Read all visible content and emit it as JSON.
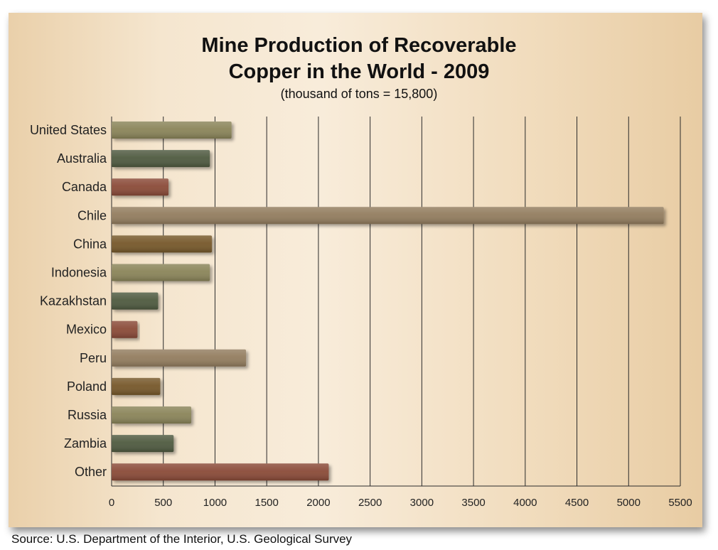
{
  "chart_data": {
    "type": "bar",
    "orientation": "horizontal",
    "title_line1": "Mine Production of Recoverable",
    "title_line2": "Copper in the World - 2009",
    "subtitle": "(thousand of tons = 15,800)",
    "xlabel": "",
    "ylabel": "",
    "xlim": [
      0,
      5500
    ],
    "xticks": [
      0,
      500,
      1000,
      1500,
      2000,
      2500,
      3000,
      3500,
      4000,
      4500,
      5000,
      5500
    ],
    "grid": "vertical",
    "categories": [
      "United States",
      "Australia",
      "Canada",
      "Chile",
      "China",
      "Indonesia",
      "Kazakhstan",
      "Mexico",
      "Peru",
      "Poland",
      "Russia",
      "Zambia",
      "Other"
    ],
    "values": [
      1160,
      950,
      550,
      5340,
      970,
      950,
      450,
      250,
      1300,
      470,
      770,
      600,
      2100
    ],
    "bar_colors": [
      "#8a8459",
      "#4f5a40",
      "#8a4a38",
      "#927c5e",
      "#76582a",
      "#8a8459",
      "#4f5a40",
      "#8a4a38",
      "#927c5e",
      "#76582a",
      "#8a8459",
      "#4f5a40",
      "#8a4a38"
    ]
  },
  "source": "Source: U.S. Department of the Interior, U.S. Geological Survey"
}
